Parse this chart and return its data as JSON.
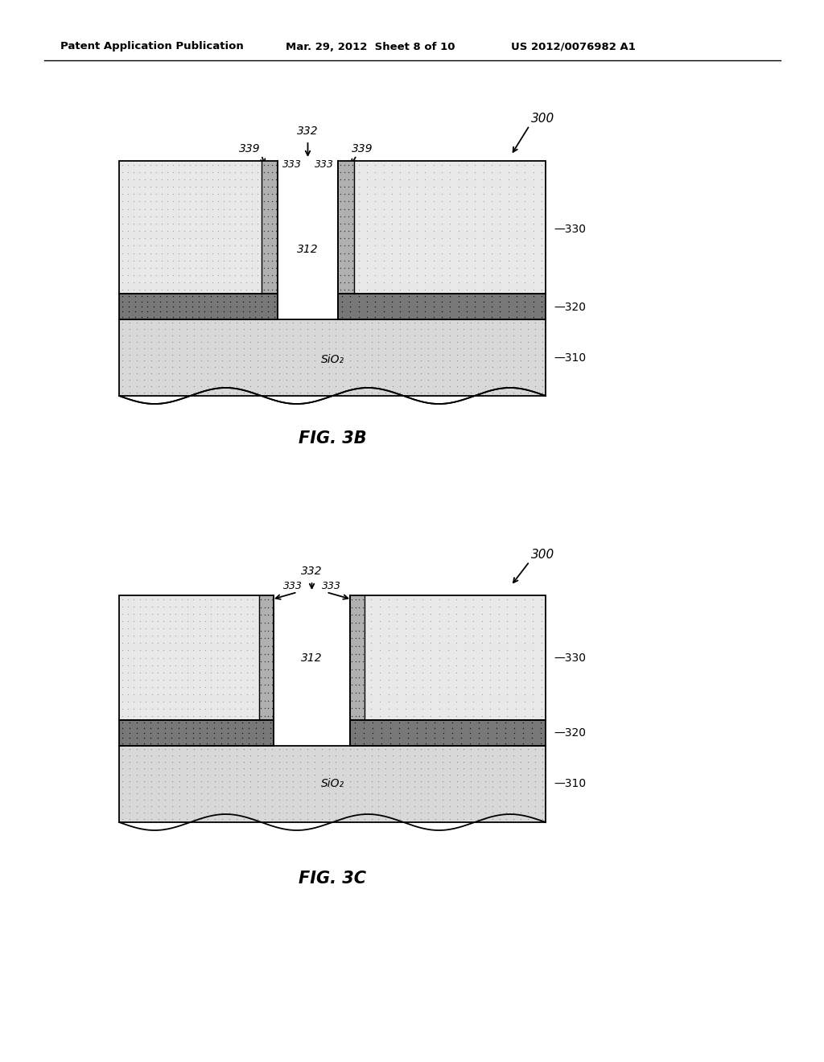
{
  "bg_color": "#ffffff",
  "header_text": "Patent Application Publication",
  "header_date": "Mar. 29, 2012  Sheet 8 of 10",
  "header_patent": "US 2012/0076982 A1",
  "fig3b_label": "FIG. 3B",
  "fig3c_label": "FIG. 3C"
}
